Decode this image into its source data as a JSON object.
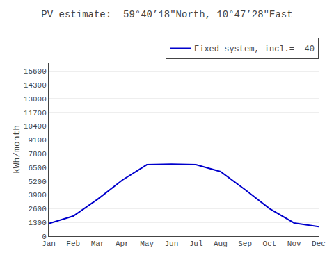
{
  "chart_data": {
    "type": "line",
    "title": "PV estimate:  59°40’18\"North, 10°47’28\"East",
    "ylabel": "kWh/month",
    "categories": [
      "Jan",
      "Feb",
      "Mar",
      "Apr",
      "May",
      "Jun",
      "Jul",
      "Aug",
      "Sep",
      "Oct",
      "Nov",
      "Dec"
    ],
    "series": [
      {
        "name": "Fixed system, incl.=  40",
        "color": "#0000cc",
        "values": [
          1200,
          1900,
          3500,
          5300,
          6750,
          6800,
          6750,
          6100,
          4400,
          2600,
          1250,
          900
        ]
      }
    ],
    "ylim": [
      0,
      16400
    ],
    "yticks": [
      0,
      1300,
      2600,
      3900,
      5200,
      6500,
      7800,
      9100,
      10400,
      11700,
      13000,
      14300,
      15600
    ],
    "grid": true,
    "legend": "upper right"
  }
}
